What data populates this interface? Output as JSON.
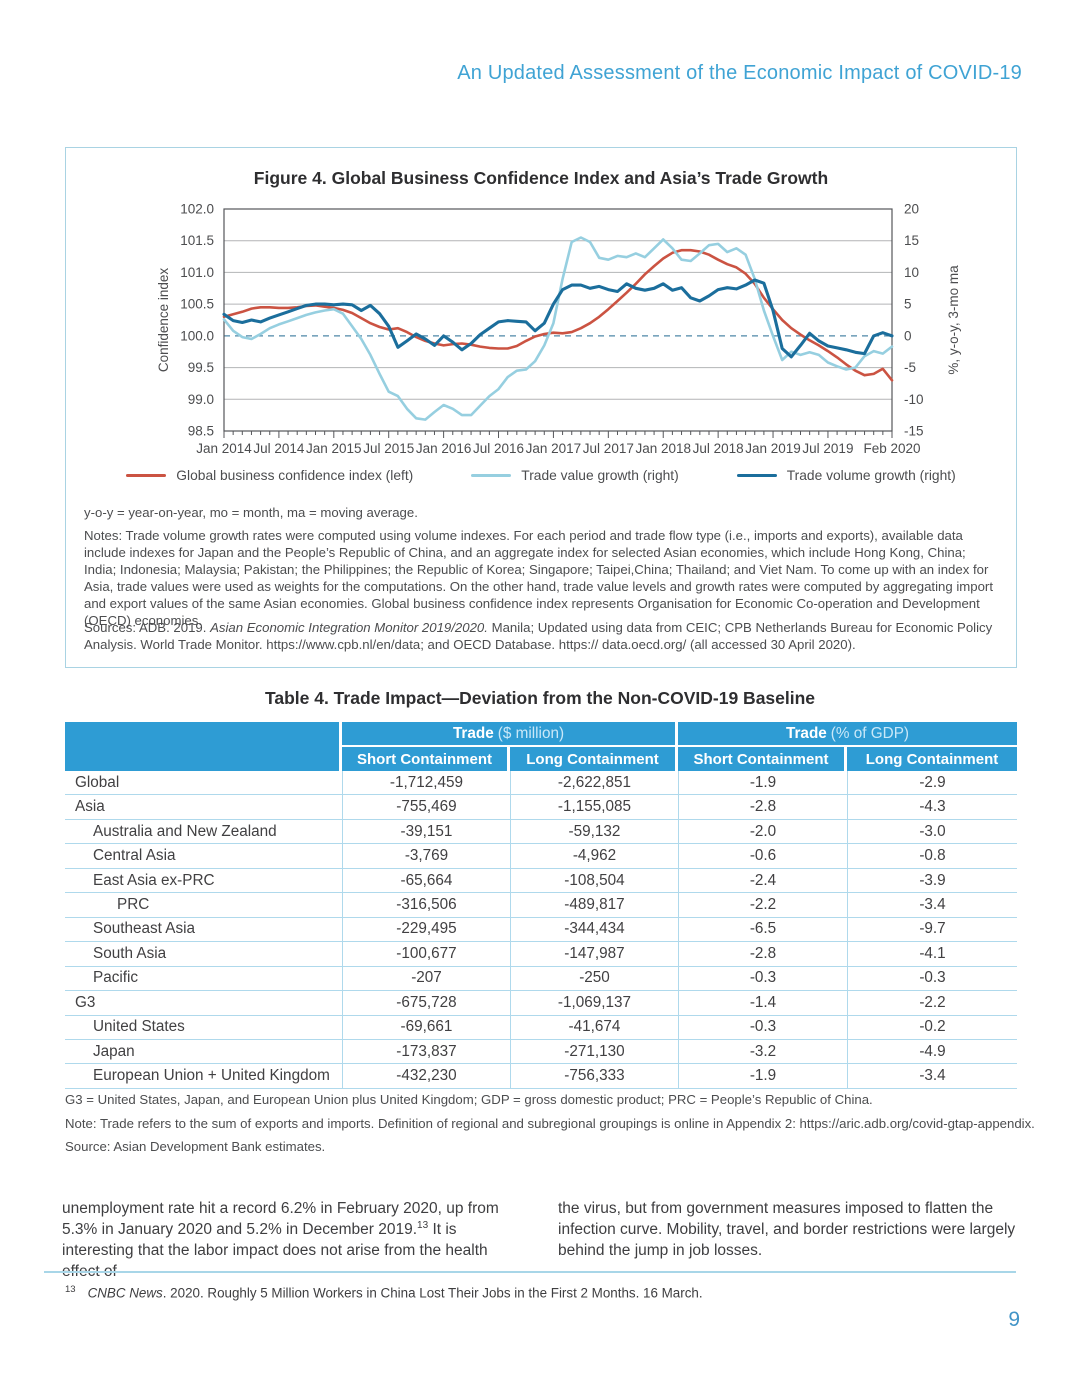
{
  "page": {
    "header_title": "An Updated Assessment of the Economic Impact of COVID-19",
    "page_number": "9"
  },
  "figure": {
    "title": "Figure 4. Global Business Confidence Index and Asia’s Trade Growth",
    "abbrev_note": "y-o-y = year-on-year, mo = month, ma = moving average.",
    "notes": "Notes: Trade volume growth rates were computed using volume indexes. For each period and trade flow type (i.e., imports and exports), available data include indexes for Japan and the People’s Republic of China, and an aggregate index for selected Asian economies, which include Hong Kong, China; India; Indonesia; Malaysia; Pakistan; the Philippines; the Republic of Korea; Singapore; Taipei,China; Thailand; and Viet Nam. To come up with an index for Asia, trade values were used as weights for the computations. On the other hand, trade value levels and growth rates were computed by aggregating import and export values of the same Asian economies. Global business confidence index represents Organisation for Economic Co-operation and Development (OECD) economies.",
    "sources_prefix": "Sources: ADB. 2019. ",
    "sources_italic": "Asian Economic Integration Monitor 2019/2020.",
    "sources_rest": " Manila; Updated using data from CEIC; CPB Netherlands Bureau for Economic Policy Analysis. World Trade Monitor. https://www.cpb.nl/en/data; and OECD Database. https:// data.oecd.org/ (all accessed 30 April 2020)."
  },
  "chart_data": {
    "type": "line",
    "title": "Figure 4. Global Business Confidence Index and Asia’s Trade Growth",
    "x_unit": "monthly, Jan 2014 to Feb 2020",
    "x_ticks": [
      {
        "label": "Jan 2014",
        "month": 0
      },
      {
        "label": "Jul 2014",
        "month": 6
      },
      {
        "label": "Jan 2015",
        "month": 12
      },
      {
        "label": "Jul 2015",
        "month": 18
      },
      {
        "label": "Jan 2016",
        "month": 24
      },
      {
        "label": "Jul 2016",
        "month": 30
      },
      {
        "label": "Jan 2017",
        "month": 36
      },
      {
        "label": "Jul 2017",
        "month": 42
      },
      {
        "label": "Jan 2018",
        "month": 48
      },
      {
        "label": "Jul 2018",
        "month": 54
      },
      {
        "label": "Jan 2019",
        "month": 60
      },
      {
        "label": "Jul 2019",
        "month": 66
      },
      {
        "label": "Feb 2020",
        "month": 73
      }
    ],
    "left_axis": {
      "label": "Confidence index",
      "min": 98.5,
      "max": 102.0,
      "ticks": [
        "102.0",
        "101.5",
        "101.0",
        "100.5",
        "100.0",
        "99.5",
        "99.0",
        "98.5"
      ]
    },
    "right_axis": {
      "label": "%, y-o-y, 3-mo ma",
      "min": -15,
      "max": 20,
      "ticks": [
        "20",
        "15",
        "10",
        "5",
        "0",
        "-5",
        "-10",
        "-15"
      ],
      "grid_values": [
        15,
        10,
        5,
        -5,
        -10
      ]
    },
    "zero_line": {
      "style": "dashed",
      "left_value": 100.0,
      "right_value": 0
    },
    "legend_position": "bottom",
    "series": [
      {
        "name": "Global business confidence index (left)",
        "axis": "left",
        "color": "#CB5342",
        "width": 2.6,
        "values": [
          100.3,
          100.34,
          100.38,
          100.43,
          100.45,
          100.45,
          100.44,
          100.44,
          100.45,
          100.47,
          100.48,
          100.46,
          100.44,
          100.41,
          100.36,
          100.28,
          100.2,
          100.14,
          100.1,
          100.12,
          100.06,
          99.98,
          99.92,
          99.88,
          99.85,
          99.87,
          99.88,
          99.86,
          99.83,
          99.81,
          99.8,
          99.8,
          99.84,
          99.92,
          99.99,
          100.03,
          100.05,
          100.04,
          100.06,
          100.12,
          100.2,
          100.3,
          100.42,
          100.55,
          100.68,
          100.82,
          100.97,
          101.1,
          101.22,
          101.31,
          101.35,
          101.35,
          101.33,
          101.28,
          101.2,
          101.13,
          101.08,
          100.98,
          100.82,
          100.6,
          100.42,
          100.25,
          100.12,
          100.02,
          99.93,
          99.85,
          99.76,
          99.66,
          99.55,
          99.45,
          99.38,
          99.4,
          99.48,
          99.3
        ]
      },
      {
        "name": "Trade value growth (right)",
        "axis": "right",
        "color": "#96CFE0",
        "width": 2.6,
        "values": [
          2.6,
          0.8,
          -0.2,
          -0.5,
          0.3,
          1.2,
          1.8,
          2.3,
          2.8,
          3.3,
          3.7,
          4.0,
          4.2,
          3.5,
          1.5,
          -0.5,
          -3.0,
          -6.0,
          -8.8,
          -9.5,
          -11.5,
          -13.0,
          -13.2,
          -12.0,
          -10.9,
          -11.5,
          -12.5,
          -12.5,
          -11.0,
          -9.5,
          -8.4,
          -6.5,
          -5.5,
          -5.3,
          -4.0,
          -1.5,
          2.0,
          9.0,
          14.8,
          15.5,
          14.8,
          12.3,
          12.0,
          12.6,
          12.4,
          13.0,
          12.4,
          13.8,
          15.2,
          13.8,
          12.0,
          11.8,
          13.0,
          14.3,
          14.5,
          13.2,
          13.8,
          12.8,
          9.0,
          4.0,
          0.0,
          -3.8,
          -2.5,
          -3.0,
          -2.6,
          -3.0,
          -4.2,
          -4.8,
          -5.3,
          -5.0,
          -3.2,
          -2.4,
          -2.8,
          -1.7
        ]
      },
      {
        "name": "Trade volume growth (right)",
        "axis": "right",
        "color": "#1B6E9C",
        "width": 3.1,
        "values": [
          3.4,
          2.4,
          2.1,
          2.5,
          2.2,
          2.8,
          3.3,
          3.8,
          4.3,
          4.8,
          5.0,
          5.0,
          4.9,
          5.0,
          4.9,
          4.0,
          4.8,
          3.5,
          1.5,
          -1.8,
          -0.8,
          0.3,
          -0.5,
          -1.5,
          0.0,
          -1.0,
          -2.2,
          -1.2,
          0.2,
          1.2,
          2.2,
          2.4,
          2.3,
          2.2,
          0.8,
          2.0,
          5.0,
          7.3,
          8.0,
          8.0,
          7.5,
          7.8,
          7.3,
          7.0,
          8.2,
          7.5,
          7.2,
          7.5,
          8.2,
          7.2,
          7.6,
          6.0,
          5.5,
          6.3,
          7.3,
          7.6,
          7.4,
          8.0,
          8.8,
          8.3,
          4.0,
          -2.0,
          -3.3,
          -1.5,
          0.4,
          -0.8,
          -1.6,
          -1.9,
          -2.2,
          -2.6,
          -2.8,
          0.0,
          0.5,
          0.0
        ]
      }
    ]
  },
  "table": {
    "title": "Table 4. Trade Impact—Deviation from the Non-COVID-19 Baseline",
    "col_groups": [
      {
        "bold": "Trade",
        "rest": "($ million)"
      },
      {
        "bold": "Trade",
        "rest": "(% of GDP)"
      }
    ],
    "sub_headers": [
      "Short Containment",
      "Long Containment",
      "Short Containment",
      "Long Containment"
    ],
    "rows": [
      {
        "label": "Global",
        "indent": 0,
        "values": [
          "-1,712,459",
          "-2,622,851",
          "-1.9",
          "-2.9"
        ]
      },
      {
        "label": "Asia",
        "indent": 0,
        "values": [
          "-755,469",
          "-1,155,085",
          "-2.8",
          "-4.3"
        ]
      },
      {
        "label": "Australia and New Zealand",
        "indent": 1,
        "values": [
          "-39,151",
          "-59,132",
          "-2.0",
          "-3.0"
        ]
      },
      {
        "label": "Central Asia",
        "indent": 1,
        "values": [
          "-3,769",
          "-4,962",
          "-0.6",
          "-0.8"
        ]
      },
      {
        "label": "East Asia ex-PRC",
        "indent": 1,
        "values": [
          "-65,664",
          "-108,504",
          "-2.4",
          "-3.9"
        ]
      },
      {
        "label": "PRC",
        "indent": 2,
        "values": [
          "-316,506",
          "-489,817",
          "-2.2",
          "-3.4"
        ]
      },
      {
        "label": "Southeast Asia",
        "indent": 1,
        "values": [
          "-229,495",
          "-344,434",
          "-6.5",
          "-9.7"
        ]
      },
      {
        "label": "South Asia",
        "indent": 1,
        "values": [
          "-100,677",
          "-147,987",
          "-2.8",
          "-4.1"
        ]
      },
      {
        "label": "Pacific",
        "indent": 1,
        "values": [
          "-207",
          "-250",
          "-0.3",
          "-0.3"
        ]
      },
      {
        "label": "G3",
        "indent": 0,
        "values": [
          "-675,728",
          "-1,069,137",
          "-1.4",
          "-2.2"
        ]
      },
      {
        "label": "United States",
        "indent": 1,
        "values": [
          "-69,661",
          "-41,674",
          "-0.3",
          "-0.2"
        ]
      },
      {
        "label": "Japan",
        "indent": 1,
        "values": [
          "-173,837",
          "-271,130",
          "-3.2",
          "-4.9"
        ]
      },
      {
        "label": "European Union + United Kingdom",
        "indent": 1,
        "values": [
          "-432,230",
          "-756,333",
          "-1.9",
          "-3.4"
        ]
      }
    ],
    "footnotes": [
      "G3 = United States, Japan, and European Union plus United Kingdom; GDP = gross domestic product; PRC = People’s Republic of China.",
      "Note: Trade refers to the sum of exports and imports. Definition of regional and subregional groupings is online in Appendix 2: https://aric.adb.org/covid-gtap-appendix.",
      "Source: Asian Development Bank estimates."
    ]
  },
  "body": {
    "left_part1": "unemployment rate hit a record 6.2% in February 2020, up from 5.3% in January 2020 and 5.2% in December 2019.",
    "left_sup": "13",
    "left_part2": " It is interesting that the labor impact does not arise from the health effect of",
    "right_text": "the virus, but from government measures imposed to flatten the infection curve. Mobility, travel, and border restrictions were largely behind the jump in job losses.",
    "footnote_marker": "13",
    "footnote_italic": "CNBC News",
    "footnote_rest": ". 2020. Roughly 5 Million Workers in China Lost Their Jobs in the First 2 Months. 16 March."
  }
}
